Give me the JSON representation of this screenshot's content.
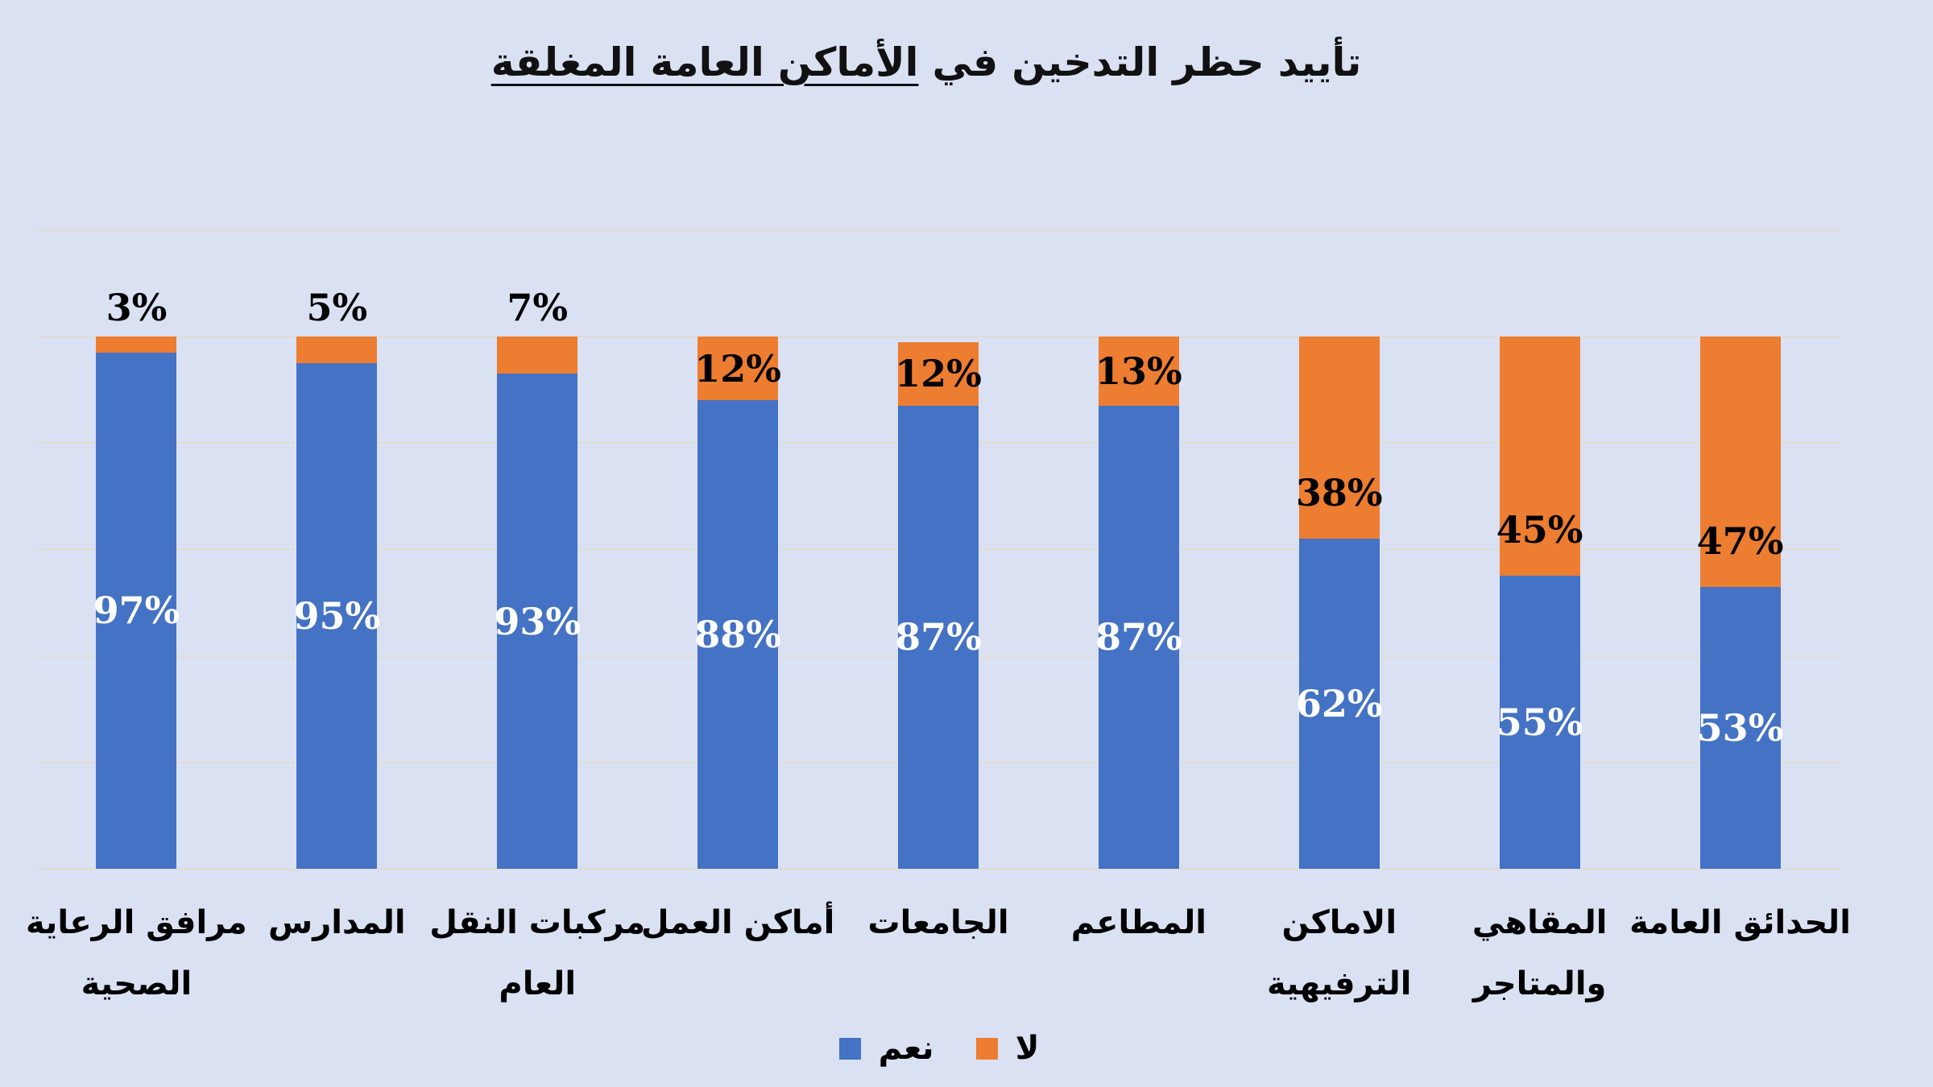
{
  "title": {
    "text_plain": "تأييد حظر التدخين في",
    "text_underlined": "الأماكن العامة المغلقة",
    "full": "تأييد حظر التدخين في الأماكن العامة المغلقة"
  },
  "colors": {
    "yes_series": "#4472C4",
    "no_series": "#ED7D31",
    "background": "#DAE1F3",
    "gridline": "#E1DCD3",
    "label_on_yes": "#FFFFFF",
    "label_on_no": "#000000"
  },
  "legend": {
    "position": "bottom",
    "entries": [
      {
        "label": "نعم",
        "color": "#4472C4"
      },
      {
        "label": "لا",
        "color": "#ED7D31"
      }
    ]
  },
  "chart_data": {
    "type": "bar",
    "subtype": "stacked-column-100",
    "title": "تأييد حظر التدخين في الأماكن العامة المغلقة",
    "xlabel": "",
    "ylabel": "",
    "value_format": "percent",
    "ylim": [
      0,
      120
    ],
    "gridlines": "horizontal every 20%",
    "legend_position": "bottom",
    "categories": [
      "مرافق الرعاية الصحية",
      "المدارس",
      "مركبات النقل العام",
      "أماكن العمل",
      "الجامعات",
      "المطاعم",
      "الاماكن الترفيهية",
      "المقاهي والمتاجر",
      "الحدائق العامة"
    ],
    "category_label_lines": [
      [
        "مرافق الرعاية",
        "الصحية"
      ],
      [
        "المدارس"
      ],
      [
        "مركبات النقل",
        "العام"
      ],
      [
        "أماكن العمل"
      ],
      [
        "الجامعات"
      ],
      [
        "المطاعم"
      ],
      [
        "الاماكن الترفيهية"
      ],
      [
        "المقاهي والمتاجر"
      ],
      [
        "الحدائق العامة"
      ]
    ],
    "series": [
      {
        "name": "نعم",
        "color": "#4472C4",
        "values": [
          97,
          95,
          93,
          88,
          87,
          87,
          62,
          55,
          53
        ]
      },
      {
        "name": "لا",
        "color": "#ED7D31",
        "values": [
          3,
          5,
          7,
          12,
          12,
          13,
          38,
          45,
          47
        ]
      }
    ]
  }
}
